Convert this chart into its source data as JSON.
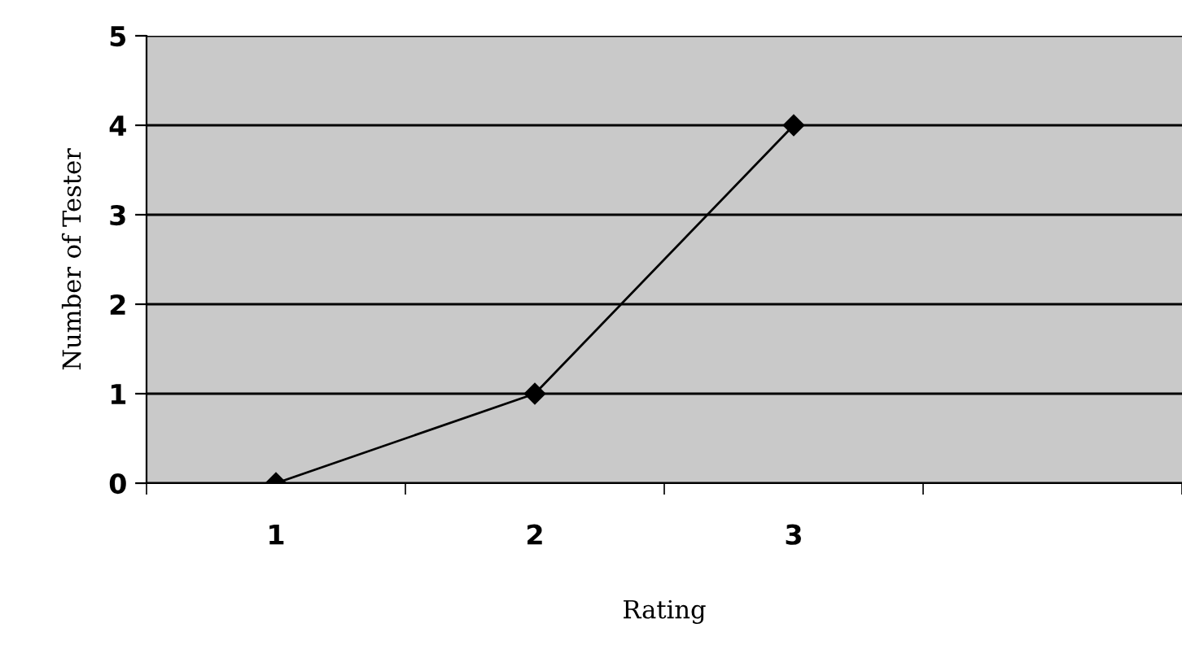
{
  "chart_data": {
    "type": "line",
    "xlabel": "Rating",
    "ylabel": "Number of Tester",
    "categories": [
      "1",
      "2",
      "3",
      null
    ],
    "series": [
      {
        "color": "#000000",
        "values": [
          0,
          1,
          4,
          null
        ]
      }
    ],
    "ylim": [
      0,
      5
    ],
    "yticks": [
      0,
      1,
      2,
      3,
      4,
      5
    ],
    "grid": "y",
    "marker": "diamond",
    "line_style": "solid"
  }
}
